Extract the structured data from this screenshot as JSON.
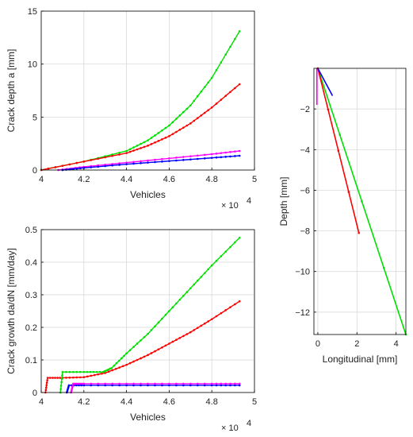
{
  "chart_data": [
    {
      "type": "line",
      "panel": "top-left",
      "xlabel": "Vehicles",
      "ylabel": "Crack depth a [mm]",
      "xlim": [
        40000,
        50000
      ],
      "ylim": [
        0,
        15
      ],
      "xticks": [
        40000,
        42000,
        44000,
        46000,
        48000,
        50000
      ],
      "xtick_labels": [
        "4",
        "4.2",
        "4.4",
        "4.6",
        "4.8",
        "5"
      ],
      "yticks": [
        0,
        5,
        10,
        15
      ],
      "ytick_labels": [
        "0",
        "5",
        "10",
        "15"
      ],
      "x_multiplier": "× 10",
      "x_exponent": "4",
      "grid": true,
      "series": [
        {
          "color": "#00e000",
          "x": [
            40000,
            42000,
            44000,
            45000,
            46000,
            47000,
            48000,
            49300
          ],
          "y": [
            0,
            0.8,
            1.8,
            2.8,
            4.2,
            6.1,
            8.7,
            13.1
          ]
        },
        {
          "color": "#ff0000",
          "x": [
            40000,
            42000,
            44000,
            45000,
            46000,
            47000,
            48000,
            49300
          ],
          "y": [
            0,
            0.8,
            1.6,
            2.3,
            3.2,
            4.4,
            5.9,
            8.1
          ]
        },
        {
          "color": "#ff00ff",
          "x": [
            40800,
            42000,
            44000,
            46000,
            48000,
            49300
          ],
          "y": [
            0,
            0.3,
            0.7,
            1.1,
            1.5,
            1.8
          ]
        },
        {
          "color": "#0000ff",
          "x": [
            41000,
            42000,
            44000,
            46000,
            48000,
            49300
          ],
          "y": [
            0,
            0.2,
            0.55,
            0.85,
            1.15,
            1.35
          ]
        }
      ]
    },
    {
      "type": "line",
      "panel": "bottom-left",
      "xlabel": "Vehicles",
      "ylabel": "Crack growth da/dN [mm/day]",
      "xlim": [
        40000,
        50000
      ],
      "ylim": [
        0,
        0.5
      ],
      "xticks": [
        40000,
        42000,
        44000,
        46000,
        48000,
        50000
      ],
      "xtick_labels": [
        "4",
        "4.2",
        "4.4",
        "4.6",
        "4.8",
        "5"
      ],
      "yticks": [
        0,
        0.1,
        0.2,
        0.3,
        0.4,
        0.5
      ],
      "ytick_labels": [
        "0",
        "0.1",
        "0.2",
        "0.3",
        "0.4",
        "0.5"
      ],
      "x_multiplier": "× 10",
      "x_exponent": "4",
      "grid": true,
      "series": [
        {
          "color": "#ff0000",
          "x": [
            40200,
            40300,
            41000,
            42000,
            43000,
            44000,
            45000,
            46000,
            47000,
            48000,
            49300
          ],
          "y": [
            0,
            0.045,
            0.045,
            0.047,
            0.06,
            0.085,
            0.115,
            0.15,
            0.185,
            0.225,
            0.28
          ]
        },
        {
          "color": "#00e000",
          "x": [
            40900,
            41000,
            42000,
            42900,
            43300,
            44000,
            45000,
            46000,
            47000,
            48000,
            49300
          ],
          "y": [
            0,
            0.063,
            0.063,
            0.063,
            0.075,
            0.12,
            0.18,
            0.25,
            0.32,
            0.39,
            0.475
          ]
        },
        {
          "color": "#0000ff",
          "x": [
            41200,
            41300,
            42000,
            44000,
            46000,
            48000,
            49300
          ],
          "y": [
            0,
            0.022,
            0.022,
            0.022,
            0.022,
            0.022,
            0.022
          ]
        },
        {
          "color": "#ff00ff",
          "x": [
            41400,
            41500,
            42000,
            44000,
            46000,
            48000,
            49300
          ],
          "y": [
            0,
            0.027,
            0.027,
            0.027,
            0.027,
            0.027,
            0.027
          ]
        }
      ]
    },
    {
      "type": "line",
      "panel": "right",
      "xlabel": "Longitudinal [mm]",
      "ylabel": "Depth [mm]",
      "xlim": [
        -0.2,
        4.5
      ],
      "ylim": [
        -13.1,
        0
      ],
      "xticks": [
        0,
        2,
        4
      ],
      "xtick_labels": [
        "0",
        "2",
        "4"
      ],
      "yticks": [
        -2,
        -4,
        -6,
        -8,
        -10,
        -12
      ],
      "ytick_labels": [
        "−2",
        "−4",
        "−6",
        "−8",
        "−10",
        "−12"
      ],
      "grid": true,
      "series": [
        {
          "color": "#00e000",
          "x": [
            0,
            4.5
          ],
          "y": [
            0,
            -13.1
          ]
        },
        {
          "color": "#ff0000",
          "x": [
            0,
            2.1
          ],
          "y": [
            0,
            -8.1
          ]
        },
        {
          "color": "#0000ff",
          "x": [
            0,
            0.75
          ],
          "y": [
            0,
            -1.35
          ]
        },
        {
          "color": "#ff00ff",
          "x": [
            -0.05,
            -0.05
          ],
          "y": [
            0,
            -1.8
          ]
        }
      ]
    }
  ]
}
